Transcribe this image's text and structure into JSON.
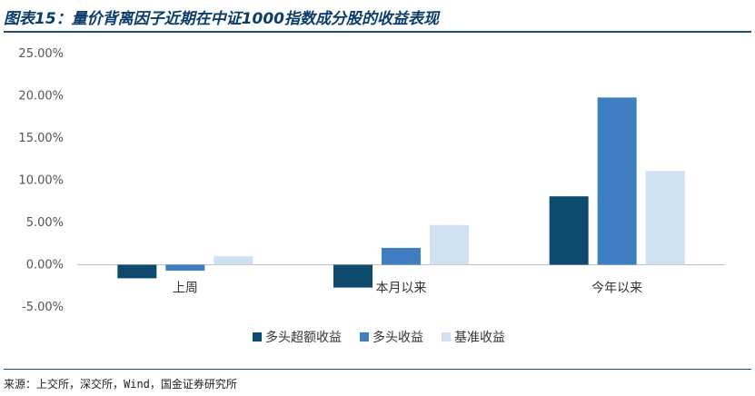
{
  "header": {
    "title": "图表15：量价背离因子近期在中证1000指数成分股的收益表现"
  },
  "footer": {
    "source": "来源：上交所，深交所，Wind，国金证券研究所"
  },
  "chart_data": {
    "type": "bar",
    "title": "",
    "xlabel": "",
    "ylabel": "",
    "categories": [
      "上周",
      "本月以来",
      "今年以来"
    ],
    "series": [
      {
        "name": "多头超额收益",
        "color": "#0d4a6e",
        "values": [
          -1.6,
          -2.7,
          8.1
        ]
      },
      {
        "name": "多头收益",
        "color": "#3f7ec0",
        "values": [
          -0.7,
          2.0,
          19.8
        ]
      },
      {
        "name": "基准收益",
        "color": "#cfe0f1",
        "values": [
          1.0,
          4.7,
          11.1
        ]
      }
    ],
    "ylim": [
      -5,
      25
    ],
    "yticks": [
      -5,
      0,
      5,
      10,
      15,
      20,
      25
    ],
    "ytick_labels": [
      "-5.00%",
      "0.00%",
      "5.00%",
      "10.00%",
      "15.00%",
      "20.00%",
      "25.00%"
    ],
    "grid": false,
    "legend_position": "bottom"
  }
}
